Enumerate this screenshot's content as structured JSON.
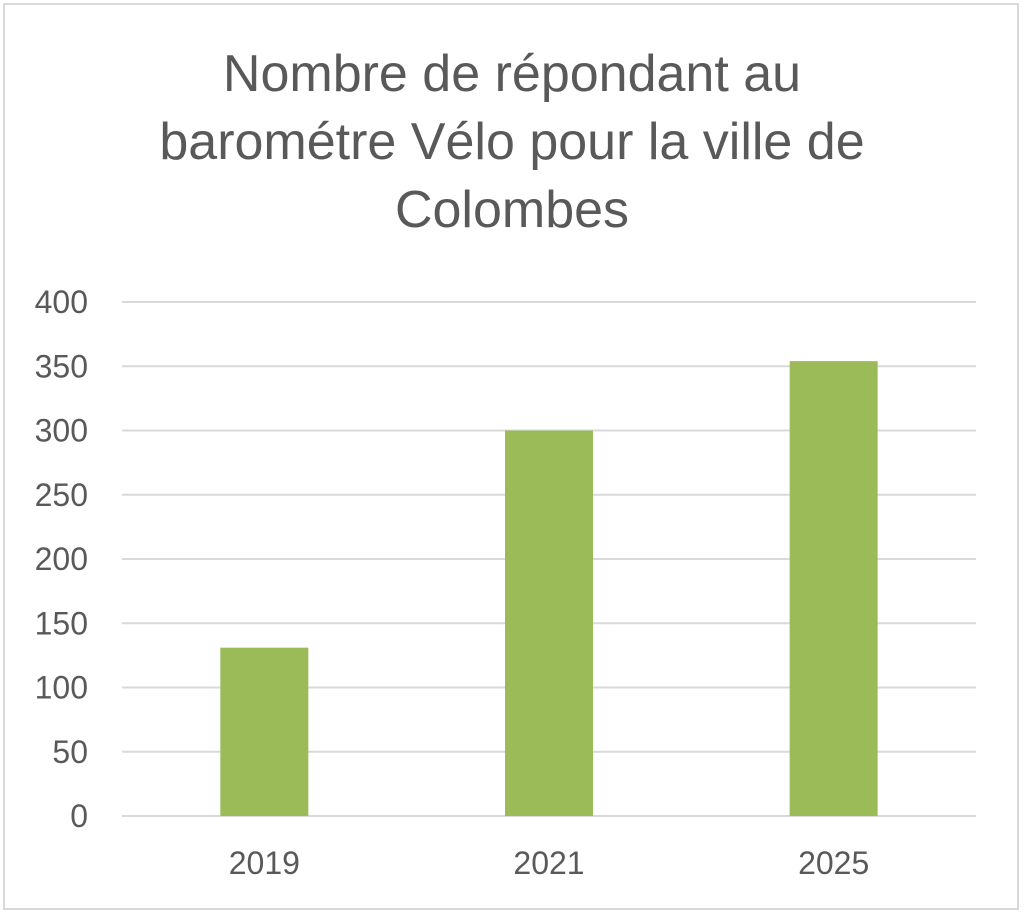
{
  "chart_data": {
    "type": "bar",
    "title_lines": [
      "Nombre de répondant au",
      "barométre Vélo pour la ville de",
      "Colombes"
    ],
    "categories": [
      "2019",
      "2021",
      "2025"
    ],
    "values": [
      131,
      300,
      354
    ],
    "ylim": [
      0,
      400
    ],
    "yticks": [
      0,
      50,
      100,
      150,
      200,
      250,
      300,
      350,
      400
    ],
    "grid": true,
    "legend": "none",
    "colors": {
      "bar": "#9bbb59",
      "grid": "#d9d9d9",
      "text": "#595959"
    }
  }
}
